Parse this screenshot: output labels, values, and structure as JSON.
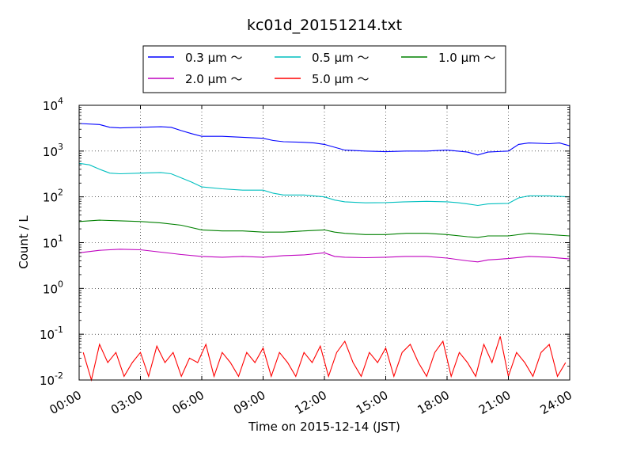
{
  "chart_data": {
    "type": "line",
    "title": "kc01d_20151214.txt",
    "xlabel": "Time on 2015-12-14 (JST)",
    "ylabel": "Count / L",
    "y_scale": "log",
    "ylim": [
      0.01,
      10000
    ],
    "xlim": [
      0,
      24
    ],
    "grid": true,
    "legend_position": "top",
    "x_ticks": [
      {
        "x": 0,
        "label": "00:00"
      },
      {
        "x": 3,
        "label": "03:00"
      },
      {
        "x": 6,
        "label": "06:00"
      },
      {
        "x": 9,
        "label": "09:00"
      },
      {
        "x": 12,
        "label": "12:00"
      },
      {
        "x": 15,
        "label": "15:00"
      },
      {
        "x": 18,
        "label": "18:00"
      },
      {
        "x": 21,
        "label": "21:00"
      },
      {
        "x": 24,
        "label": "24:00"
      }
    ],
    "y_ticks": [
      {
        "value": 0.01,
        "base": "10",
        "exp": "-2"
      },
      {
        "value": 0.1,
        "base": "10",
        "exp": "-1"
      },
      {
        "value": 1,
        "base": "10",
        "exp": "0"
      },
      {
        "value": 10,
        "base": "10",
        "exp": "1"
      },
      {
        "value": 100,
        "base": "10",
        "exp": "2"
      },
      {
        "value": 1000,
        "base": "10",
        "exp": "3"
      },
      {
        "value": 10000,
        "base": "10",
        "exp": "4"
      }
    ],
    "series": [
      {
        "name": "0.3 μm ～",
        "color": "#0000ff",
        "x": [
          0,
          1,
          1.5,
          2,
          3,
          4,
          4.5,
          5,
          5.5,
          6,
          7,
          8,
          9,
          9.5,
          10,
          11,
          11.5,
          12,
          13,
          14,
          15,
          16,
          17,
          18,
          18.5,
          19,
          19.5,
          20,
          21,
          21.5,
          22,
          23,
          23.5,
          24
        ],
        "y": [
          4000,
          3800,
          3300,
          3200,
          3300,
          3400,
          3300,
          2800,
          2400,
          2100,
          2100,
          2000,
          1900,
          1700,
          1600,
          1550,
          1500,
          1400,
          1050,
          1000,
          970,
          1000,
          1000,
          1050,
          1000,
          950,
          820,
          950,
          1000,
          1400,
          1500,
          1450,
          1500,
          1300
        ]
      },
      {
        "name": "0.5 μm ～",
        "color": "#00bfbf",
        "x": [
          0,
          0.5,
          1,
          1.5,
          2,
          3,
          4,
          4.5,
          5,
          5.5,
          6,
          7,
          8,
          9,
          9.5,
          10,
          11,
          12,
          12.5,
          13,
          14,
          15,
          16,
          17,
          18,
          18.5,
          19,
          19.5,
          20,
          21,
          21.5,
          22,
          23,
          24
        ],
        "y": [
          540,
          500,
          400,
          330,
          320,
          330,
          340,
          320,
          260,
          210,
          165,
          150,
          140,
          140,
          120,
          110,
          110,
          100,
          85,
          78,
          74,
          75,
          78,
          80,
          78,
          75,
          70,
          65,
          70,
          72,
          95,
          105,
          105,
          100
        ]
      },
      {
        "name": "1.0 μm ～",
        "color": "#008000",
        "x": [
          0,
          1,
          2,
          3,
          4,
          5,
          6,
          7,
          8,
          9,
          10,
          11,
          12,
          12.5,
          13,
          14,
          15,
          16,
          17,
          18,
          19,
          19.5,
          20,
          21,
          22,
          23,
          24
        ],
        "y": [
          29,
          31,
          30,
          29,
          27,
          24,
          19,
          18,
          18,
          17,
          17,
          18,
          19,
          17,
          16,
          15,
          15,
          16,
          16,
          15,
          13.5,
          13,
          14,
          14,
          16,
          15,
          14
        ]
      },
      {
        "name": "2.0 μm ～",
        "color": "#bf00bf",
        "x": [
          0,
          1,
          2,
          3,
          4,
          5,
          6,
          7,
          8,
          9,
          10,
          11,
          12,
          12.5,
          13,
          14,
          15,
          16,
          17,
          18,
          19,
          19.5,
          20,
          21,
          22,
          23,
          24
        ],
        "y": [
          6.0,
          6.8,
          7.2,
          7.0,
          6.2,
          5.5,
          5.0,
          4.8,
          5.0,
          4.8,
          5.2,
          5.4,
          6.0,
          5.0,
          4.8,
          4.7,
          4.8,
          5.0,
          5.0,
          4.6,
          4.0,
          3.8,
          4.2,
          4.5,
          5.0,
          4.8,
          4.4
        ]
      },
      {
        "name": "5.0 μm ～",
        "color": "#ff0000",
        "x": [
          0.2,
          0.6,
          1.0,
          1.4,
          1.8,
          2.2,
          2.6,
          3.0,
          3.4,
          3.8,
          4.2,
          4.6,
          5.0,
          5.4,
          5.8,
          6.2,
          6.6,
          7.0,
          7.4,
          7.8,
          8.2,
          8.6,
          9.0,
          9.4,
          9.8,
          10.2,
          10.6,
          11.0,
          11.4,
          11.8,
          12.2,
          12.6,
          13.0,
          13.4,
          13.8,
          14.2,
          14.6,
          15.0,
          15.4,
          15.8,
          16.2,
          16.6,
          17.0,
          17.4,
          17.8,
          18.2,
          18.6,
          19.0,
          19.4,
          19.8,
          20.2,
          20.6,
          21.0,
          21.4,
          21.8,
          22.2,
          22.6,
          23.0,
          23.4,
          23.8
        ],
        "y": [
          0.04,
          0.01,
          0.06,
          0.024,
          0.04,
          0.012,
          0.024,
          0.04,
          0.012,
          0.055,
          0.024,
          0.04,
          0.012,
          0.03,
          0.024,
          0.06,
          0.012,
          0.04,
          0.024,
          0.012,
          0.04,
          0.024,
          0.05,
          0.012,
          0.04,
          0.024,
          0.012,
          0.04,
          0.024,
          0.055,
          0.012,
          0.04,
          0.07,
          0.024,
          0.012,
          0.04,
          0.024,
          0.05,
          0.012,
          0.04,
          0.06,
          0.024,
          0.012,
          0.04,
          0.07,
          0.012,
          0.04,
          0.024,
          0.012,
          0.06,
          0.024,
          0.09,
          0.012,
          0.04,
          0.024,
          0.012,
          0.04,
          0.06,
          0.012,
          0.024
        ]
      }
    ]
  }
}
